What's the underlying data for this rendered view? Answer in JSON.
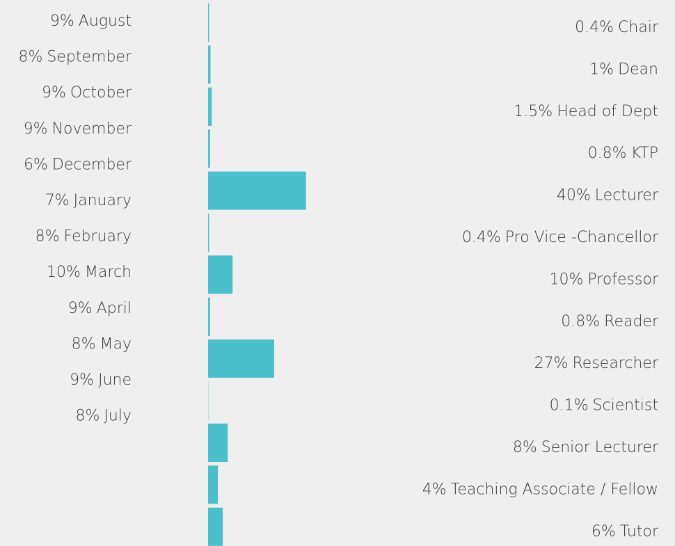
{
  "months": [
    {
      "value": 9,
      "value_label": "9%",
      "name": "August"
    },
    {
      "value": 8,
      "value_label": "8%",
      "name": "September"
    },
    {
      "value": 9,
      "value_label": "9%",
      "name": "October"
    },
    {
      "value": 9,
      "value_label": "9%",
      "name": "November"
    },
    {
      "value": 6,
      "value_label": "6%",
      "name": "December"
    },
    {
      "value": 7,
      "value_label": "7%",
      "name": "January"
    },
    {
      "value": 8,
      "value_label": "8%",
      "name": "February"
    },
    {
      "value": 10,
      "value_label": "10%",
      "name": "March"
    },
    {
      "value": 9,
      "value_label": "9%",
      "name": "April"
    },
    {
      "value": 8,
      "value_label": "8%",
      "name": "May"
    },
    {
      "value": 9,
      "value_label": "9%",
      "name": "June"
    },
    {
      "value": 8,
      "value_label": "8%",
      "name": "July"
    }
  ],
  "roles": [
    {
      "value": 0.4,
      "value_label": "0.4%",
      "name": "Chair"
    },
    {
      "value": 1,
      "value_label": "1%",
      "name": "Dean"
    },
    {
      "value": 1.5,
      "value_label": "1.5%",
      "name": "Head of Dept"
    },
    {
      "value": 0.8,
      "value_label": "0.8%",
      "name": "KTP"
    },
    {
      "value": 40,
      "value_label": "40%",
      "name": "Lecturer"
    },
    {
      "value": 0.4,
      "value_label": "0.4%",
      "name": "Pro Vice -Chancellor"
    },
    {
      "value": 10,
      "value_label": "10%",
      "name": "Professor"
    },
    {
      "value": 0.8,
      "value_label": "0.8%",
      "name": "Reader"
    },
    {
      "value": 27,
      "value_label": "27%",
      "name": "Researcher"
    },
    {
      "value": 0.1,
      "value_label": "0.1%",
      "name": "Scientist"
    },
    {
      "value": 8,
      "value_label": "8%",
      "name": "Senior Lecturer"
    },
    {
      "value": 4,
      "value_label": "4%",
      "name": "Teaching Associate / Fellow"
    },
    {
      "value": 6,
      "value_label": "6%",
      "name": "Tutor"
    }
  ],
  "bar_color": "#4bbfcb"
}
